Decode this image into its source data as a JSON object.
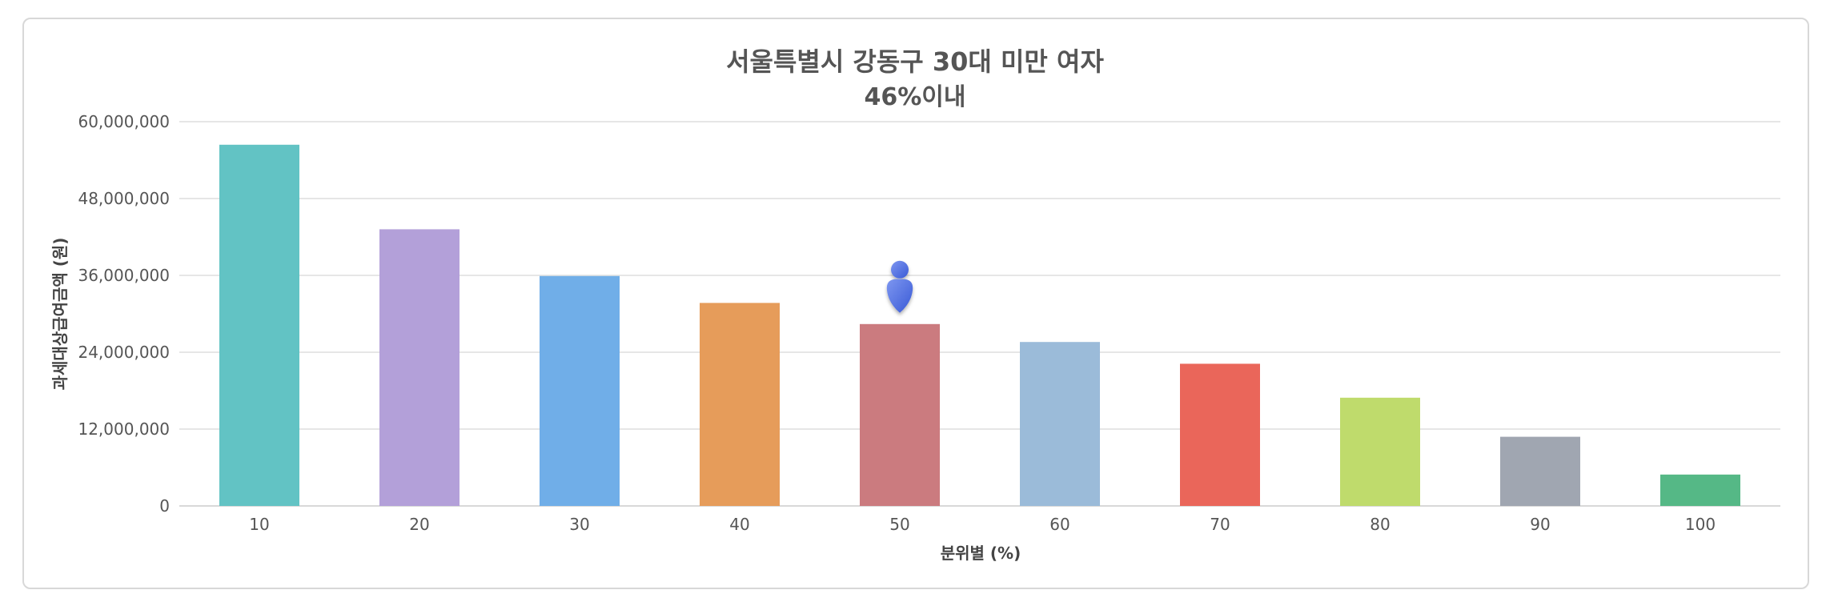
{
  "chart_data": {
    "type": "bar",
    "title": "서울특별시 강동구 30대 미만 여자",
    "subtitle": "46%이내",
    "xlabel": "분위별 (%)",
    "ylabel": "과세대상급여금액 (원)",
    "categories": [
      "10",
      "20",
      "30",
      "40",
      "50",
      "60",
      "70",
      "80",
      "90",
      "100"
    ],
    "values": [
      56400000,
      43200000,
      35900000,
      31700000,
      28400000,
      25600000,
      22200000,
      16900000,
      10800000,
      4900000
    ],
    "colors": [
      "#62c3c4",
      "#b3a0d9",
      "#70aee8",
      "#e69c5a",
      "#cb7b7f",
      "#9bbbd9",
      "#ea665a",
      "#bfdb6c",
      "#a0a6b1",
      "#55b886"
    ],
    "ylim": [
      0,
      60000000
    ],
    "yticks": [
      0,
      12000000,
      24000000,
      36000000,
      48000000,
      60000000
    ],
    "ytick_labels": [
      "0",
      "12,000,000",
      "24,000,000",
      "36,000,000",
      "48,000,000",
      "60,000,000"
    ],
    "marker": {
      "category": "50",
      "icon": "person-marker-icon",
      "color": "#4a6ee0"
    },
    "grid": true
  }
}
